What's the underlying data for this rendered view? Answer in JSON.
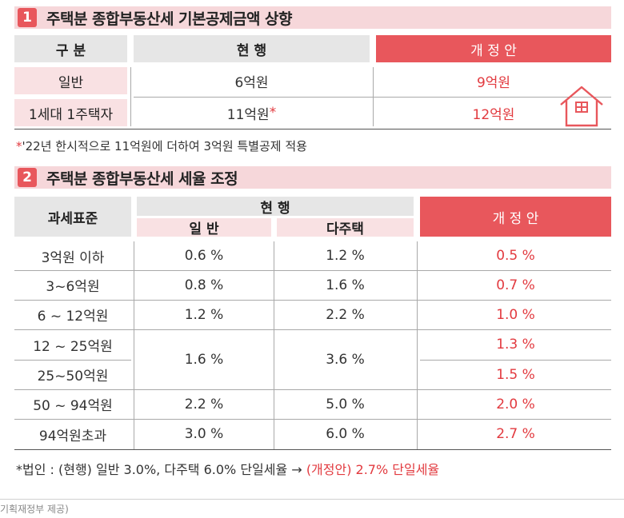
{
  "section1": {
    "num": "1",
    "title": "주택분 종합부동산세 기본공제금액 상향",
    "header": {
      "gubun": "구 분",
      "current": "현 행",
      "proposal": "개 정 안"
    },
    "rows": [
      {
        "label": "일반",
        "current": "6억원",
        "current_mark": "",
        "proposal": "9억원"
      },
      {
        "label": "1세대 1주택자",
        "current": "11억원",
        "current_mark": "*",
        "proposal": "12억원"
      }
    ],
    "note_star": "*",
    "note": "'22년 한시적으로 11억원에 더하여 3억원 특별공제 적용"
  },
  "section2": {
    "num": "2",
    "title": "주택분 종합부동산세 세율 조정",
    "header": {
      "base": "과세표준",
      "current": "현 행",
      "general": "일 반",
      "multi": "다주택",
      "proposal": "개 정 안"
    },
    "rows": [
      {
        "base": "3억원 이하",
        "general": "0.6 %",
        "multi": "1.2 %",
        "proposal": "0.5 %"
      },
      {
        "base": "3~6억원",
        "general": "0.8 %",
        "multi": "1.6 %",
        "proposal": "0.7 %"
      },
      {
        "base": "6 ~ 12억원",
        "general": "1.2 %",
        "multi": "2.2 %",
        "proposal": "1.0 %"
      },
      {
        "base": "12 ~ 25억원",
        "proposal": "1.3 %"
      },
      {
        "base": "25~50억원",
        "proposal": "1.5 %"
      },
      {
        "base": "50 ~ 94억원",
        "general": "2.2 %",
        "multi": "5.0 %",
        "proposal": "2.0 %"
      },
      {
        "base": "94억원초과",
        "general": "3.0 %",
        "multi": "6.0 %",
        "proposal": "2.7 %"
      }
    ],
    "merged": {
      "general": "1.6 %",
      "multi": "3.6 %"
    },
    "note_black": "*법인 : (현행) 일반 3.0%, 다주택 6.0% 단일세율 →",
    "note_red": "(개정안) 2.7% 단일세율"
  },
  "source": "기획재정부 제공)",
  "colors": {
    "accent": "#e8575c",
    "pink": "#f6d7da",
    "red_text": "#e23a3f"
  },
  "icons": {
    "house": "house-icon"
  }
}
